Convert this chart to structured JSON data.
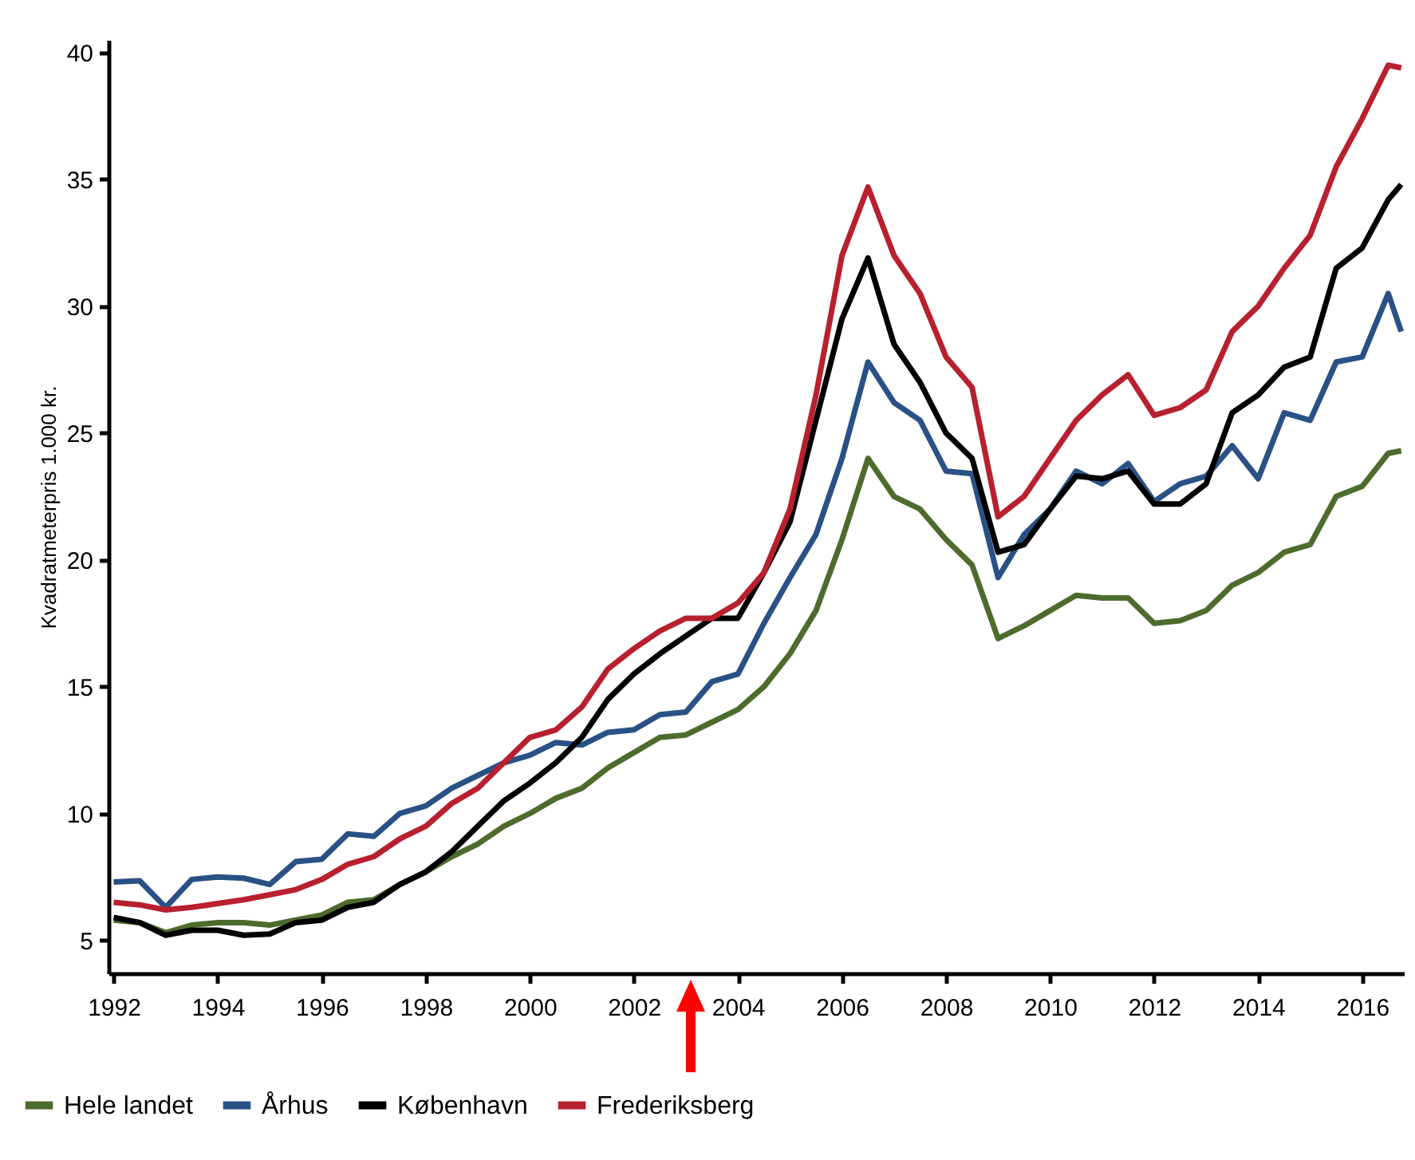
{
  "chart_data": {
    "type": "line",
    "ylabel": "Kvadratmeterpris 1.000 kr.",
    "xlim": [
      1991.9,
      2016.8
    ],
    "ylim": [
      3.7,
      40.5
    ],
    "xticks": [
      1992,
      1994,
      1996,
      1998,
      2000,
      2002,
      2004,
      2006,
      2008,
      2010,
      2012,
      2014,
      2016
    ],
    "yticks": [
      5,
      10,
      15,
      20,
      25,
      30,
      35,
      40
    ],
    "grid": false,
    "legend": "bottom left",
    "x": [
      1992,
      1992.5,
      1993,
      1993.5,
      1994,
      1994.5,
      1995,
      1995.5,
      1996,
      1996.5,
      1997,
      1997.5,
      1998,
      1998.5,
      1999,
      1999.5,
      2000,
      2000.5,
      2001,
      2001.5,
      2002,
      2002.5,
      2003,
      2003.5,
      2004,
      2004.5,
      2005,
      2005.5,
      2006,
      2006.5,
      2007,
      2007.5,
      2008,
      2008.5,
      2009,
      2009.5,
      2010,
      2010.5,
      2011,
      2011.5,
      2012,
      2012.5,
      2013,
      2013.5,
      2014,
      2014.5,
      2015,
      2015.5,
      2016,
      2016.5,
      2016.75
    ],
    "series": [
      {
        "name": "Hele landet",
        "color": "#4e6b2e",
        "values": [
          5.8,
          5.7,
          5.3,
          5.6,
          5.7,
          5.7,
          5.6,
          5.8,
          6.0,
          6.5,
          6.6,
          7.2,
          7.7,
          8.3,
          8.8,
          9.5,
          10.0,
          10.6,
          11.0,
          11.8,
          12.4,
          13.0,
          13.1,
          13.6,
          14.1,
          15.0,
          16.3,
          18.0,
          20.8,
          24.0,
          22.5,
          22.0,
          20.8,
          19.8,
          16.9,
          17.4,
          18.0,
          18.6,
          18.5,
          18.5,
          17.5,
          17.6,
          18.0,
          19.0,
          19.5,
          20.3,
          20.6,
          22.5,
          22.9,
          24.2,
          24.3
        ]
      },
      {
        "name": "Århus",
        "color": "#2a5185",
        "values": [
          7.3,
          7.35,
          6.3,
          7.4,
          7.5,
          7.45,
          7.2,
          8.1,
          8.2,
          9.2,
          9.1,
          10.0,
          10.3,
          11.0,
          11.5,
          12.0,
          12.3,
          12.8,
          12.7,
          13.2,
          13.3,
          13.9,
          14.0,
          15.2,
          15.5,
          17.5,
          19.3,
          21.0,
          24.0,
          27.8,
          26.2,
          25.5,
          23.5,
          23.4,
          19.3,
          21.0,
          22.0,
          23.5,
          23.0,
          23.8,
          22.3,
          23.0,
          23.3,
          24.5,
          23.2,
          25.8,
          25.5,
          27.8,
          28.0,
          30.5,
          29.0
        ]
      },
      {
        "name": "København",
        "color": "#000000",
        "values": [
          5.9,
          5.7,
          5.2,
          5.4,
          5.4,
          5.2,
          5.25,
          5.7,
          5.8,
          6.3,
          6.5,
          7.2,
          7.7,
          8.5,
          9.5,
          10.5,
          11.2,
          12.0,
          13.0,
          14.5,
          15.5,
          16.3,
          17.0,
          17.7,
          17.7,
          19.5,
          21.5,
          25.5,
          29.5,
          31.9,
          28.5,
          27.0,
          25.0,
          24.0,
          20.3,
          20.6,
          22.0,
          23.3,
          23.2,
          23.5,
          22.2,
          22.2,
          23.0,
          25.8,
          26.5,
          27.6,
          28.0,
          31.5,
          32.3,
          34.2,
          34.8
        ]
      },
      {
        "name": "Frederiksberg",
        "color": "#b8202f",
        "values": [
          6.5,
          6.4,
          6.2,
          6.3,
          6.45,
          6.6,
          6.8,
          7.0,
          7.4,
          8.0,
          8.3,
          9.0,
          9.5,
          10.4,
          11.0,
          12.0,
          13.0,
          13.3,
          14.2,
          15.7,
          16.5,
          17.2,
          17.7,
          17.7,
          18.3,
          19.5,
          22.0,
          26.5,
          32.0,
          34.7,
          32.0,
          30.5,
          28.0,
          26.8,
          21.7,
          22.5,
          24.0,
          25.5,
          26.5,
          27.3,
          25.7,
          26.0,
          26.7,
          29.0,
          30.0,
          31.5,
          32.8,
          35.5,
          37.4,
          39.5,
          39.4
        ]
      }
    ]
  }
}
